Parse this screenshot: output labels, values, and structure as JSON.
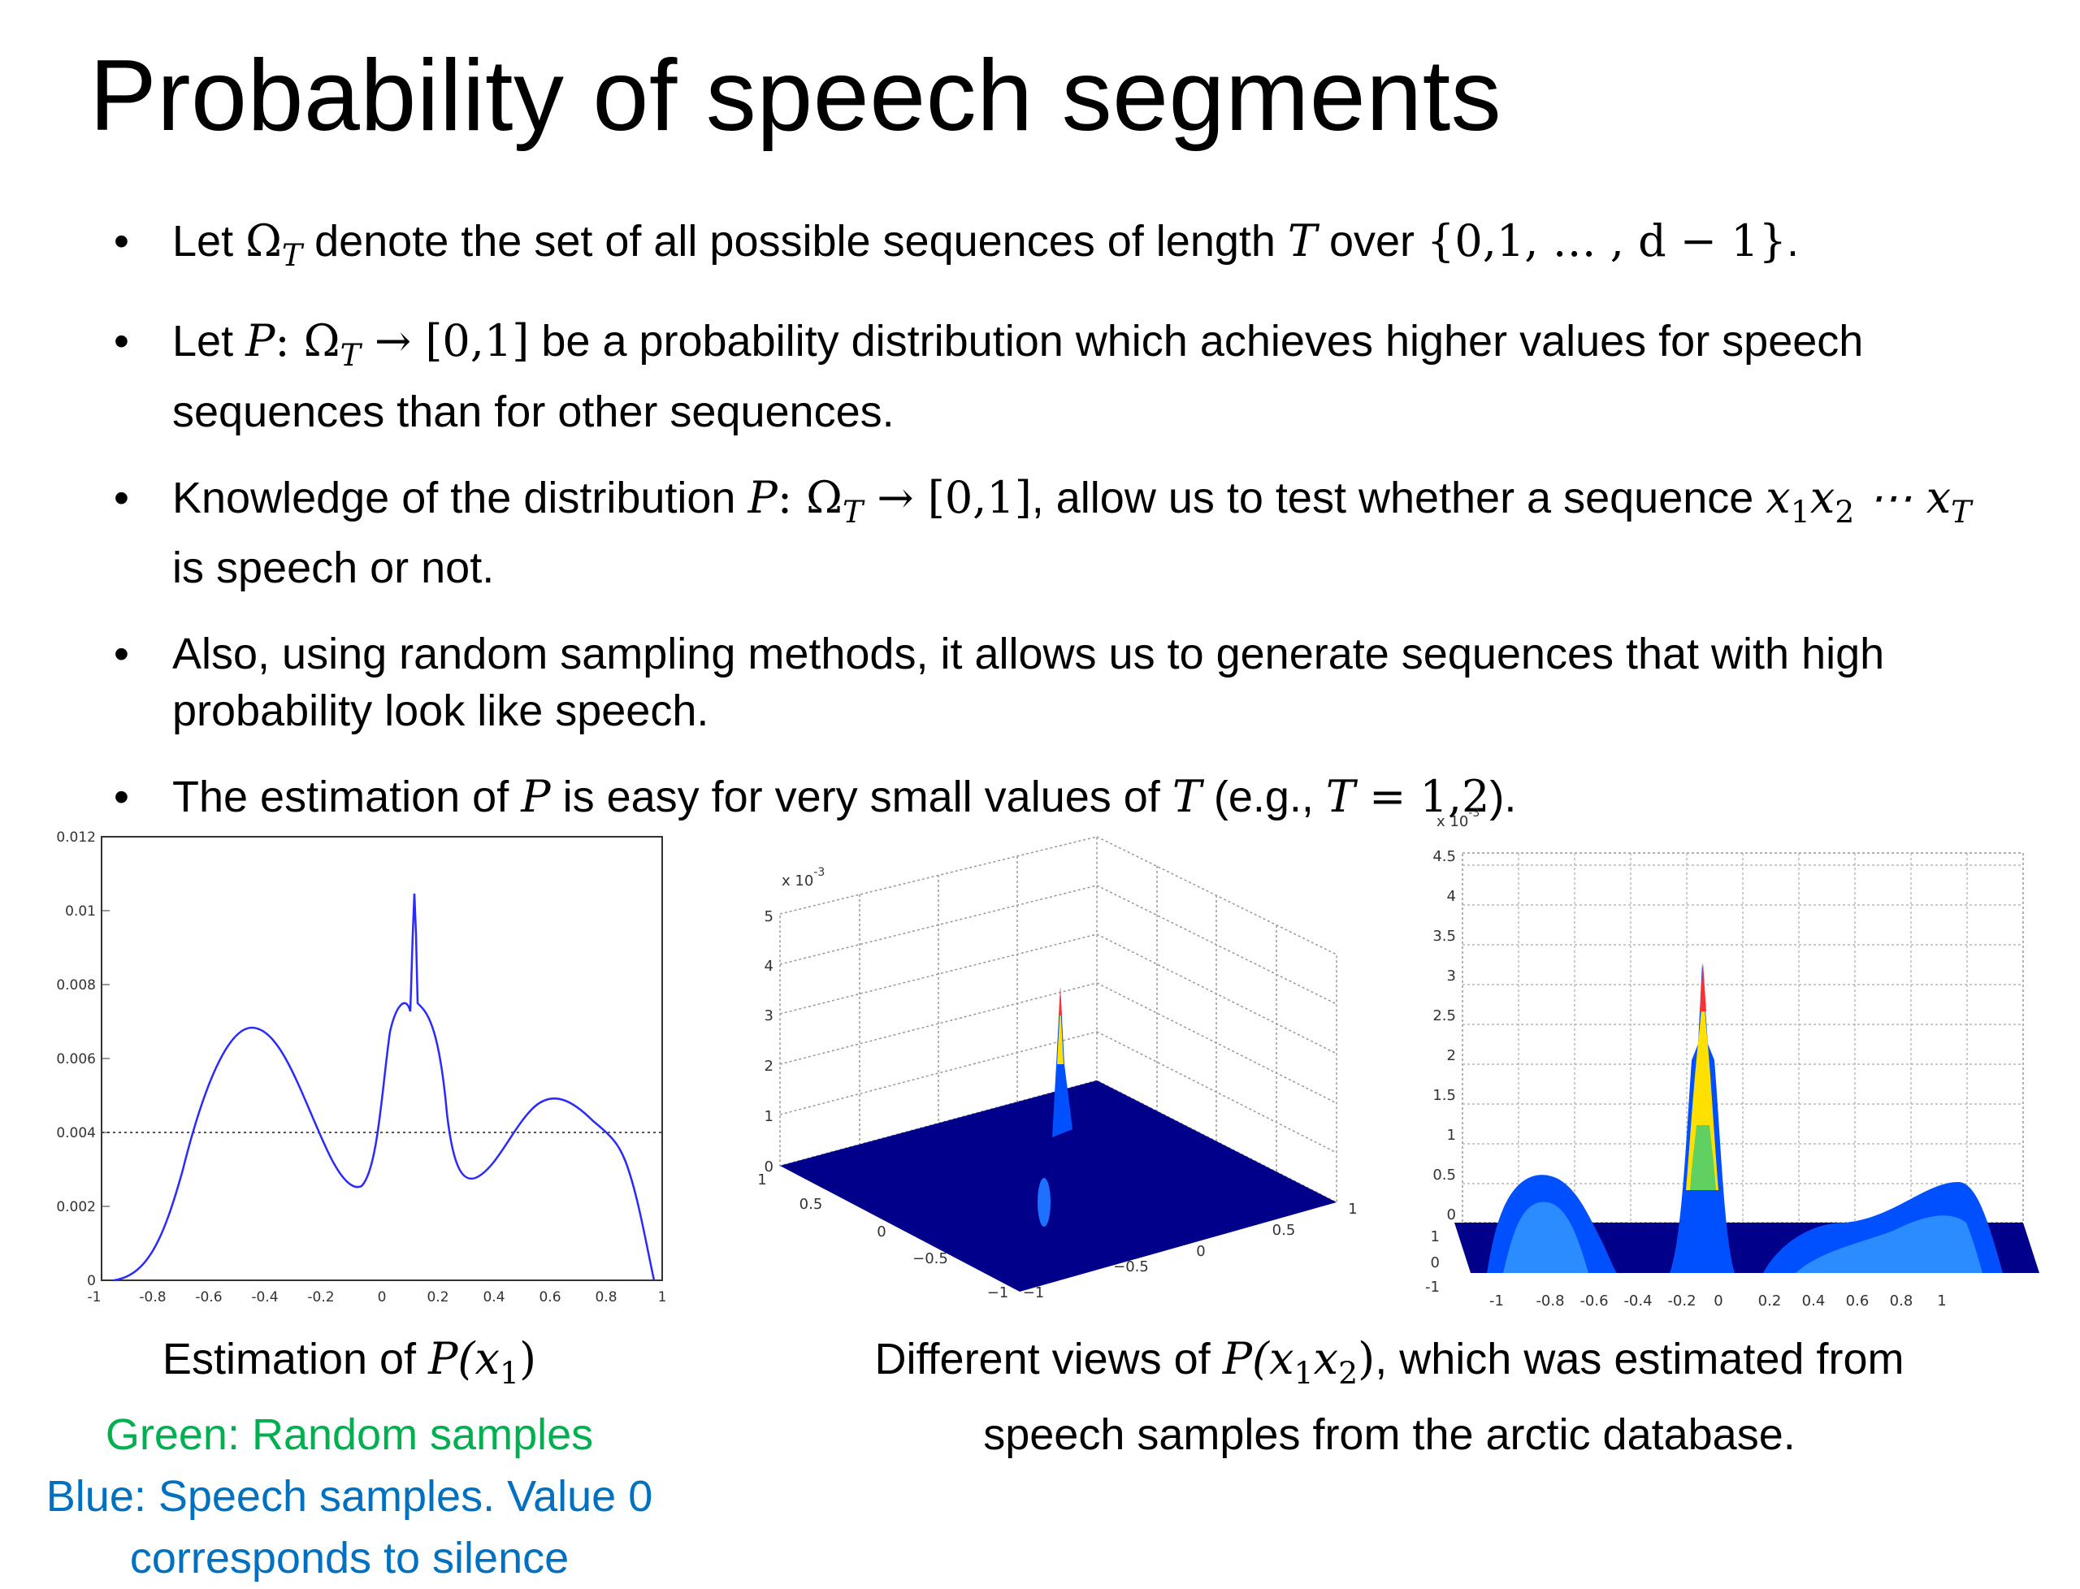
{
  "slide": {
    "title": "Probability of speech segments",
    "bullets": [
      {
        "t1": "Let ",
        "m1": "Ω",
        "s1": "T",
        "t2": " denote the set of all possible sequences of length ",
        "m2": "T",
        "t3": " over ",
        "m3": "{0,1, … , d − 1}",
        "t4": "."
      },
      {
        "t1": "Let ",
        "m1": "P",
        "m2": ": Ω",
        "s1": "T",
        "m3": " → [0,1]",
        "t2": " be a probability distribution which achieves higher values for speech sequences than for other sequences."
      },
      {
        "t1": "Knowledge of the distribution ",
        "m1": "P",
        "m2": ": Ω",
        "s1": "T",
        "m3": " → [0,1]",
        "t2": ", allow us to test whether a sequence ",
        "m4": "x",
        "s2": "1",
        "m5": "x",
        "s3": "2",
        "m6": " ⋯ x",
        "s4": "T",
        "t3": " is speech or not."
      },
      {
        "t1": "Also, using random sampling methods, it allows us to generate sequences that with high probability look like speech."
      },
      {
        "t1": "The estimation of ",
        "m1": "P",
        "t2": " is easy for very small values of ",
        "m2": "T",
        "t3": " (e.g., ",
        "m3": "T",
        "m4": " = 1,2",
        "t4": ")."
      }
    ],
    "caption_left": {
      "line1_text": "Estimation of ",
      "line1_math": "P",
      "line1_paren": "(x",
      "line1_sub": "1",
      "line1_close": ")",
      "green_line": "Green: Random samples",
      "blue_line1": "Blue: Speech samples. Value 0",
      "blue_line2": "corresponds to silence"
    },
    "caption_right": {
      "t1": "Different views of ",
      "m1": "P",
      "m2": "(x",
      "s1": "1",
      "m3": "x",
      "s2": "2",
      "m4": ")",
      "t2": ", which was estimated from",
      "line2": "speech samples from the arctic database."
    }
  },
  "plot2d": {
    "yticks": [
      "0",
      "0.002",
      "0.004",
      "0.006",
      "0.008",
      "0.01",
      "0.012"
    ],
    "xticks": [
      "-1",
      "-0.8",
      "-0.6",
      "-0.4",
      "-0.2",
      "0",
      "0.2",
      "0.4",
      "0.6",
      "0.8",
      "1"
    ],
    "line_color": "#0000ff"
  },
  "plot3d_a": {
    "exp": "x 10",
    "exp_sup": "-3",
    "zticks": [
      "0",
      "1",
      "2",
      "3",
      "4",
      "5"
    ],
    "left_ticks": [
      "1",
      "0.5",
      "0",
      "−0.5",
      "−1"
    ],
    "right_ticks": [
      "−1",
      "−0.5",
      "0",
      "0.5",
      "1"
    ]
  },
  "plot3d_b": {
    "exp": "x 10",
    "exp_sup": "-3",
    "zticks": [
      "0",
      "0.5",
      "1",
      "1.5",
      "2",
      "2.5",
      "3",
      "3.5",
      "4",
      "4.5"
    ],
    "xticks": [
      "-1",
      "-0.8",
      "-0.6",
      "-0.4",
      "-0.2",
      "0",
      "0.2",
      "0.4",
      "0.6",
      "0.8",
      "1"
    ],
    "side_ticks": [
      "1",
      "0",
      "-1"
    ]
  },
  "colors": {
    "surface_dark": "#00008b",
    "surface_mid": "#0050ff",
    "green_caption": "#00b050",
    "blue_caption": "#0070c0"
  }
}
